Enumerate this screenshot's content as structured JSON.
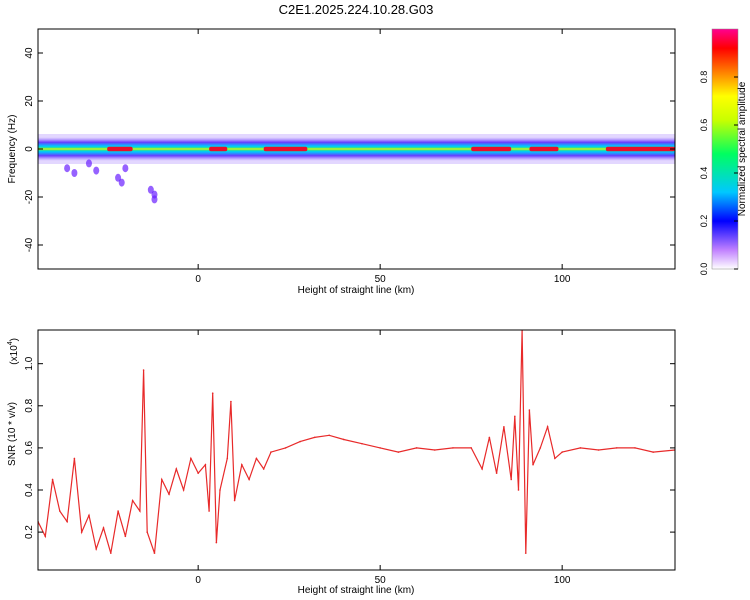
{
  "figure": {
    "title": "C2E1.2025.224.10.28.G03"
  },
  "colors": {
    "line": "#e82a2a",
    "ridge_core": "#e8102a",
    "ridge_mid": "#20e050",
    "ridge_outer": "#2040ff",
    "ridge_halo": "#b08cff"
  },
  "chart_data": [
    {
      "type": "heatmap",
      "title": "",
      "xlabel": "Height of straight line (km)",
      "ylabel": "Frequency (Hz)",
      "xlim": [
        -44,
        131
      ],
      "ylim": [
        -50,
        50
      ],
      "xticks": [
        "0",
        "50",
        "100"
      ],
      "yticks": [
        "-40",
        "-20",
        "0",
        "20",
        "40"
      ],
      "colorbar": {
        "label": "Normalized spectral amplitude",
        "range": [
          0.0,
          1.0
        ],
        "ticks": [
          "0.0",
          "0.2",
          "0.4",
          "0.6",
          "0.8"
        ],
        "colormap": [
          "#ffffff",
          "#a050ff",
          "#0000ff",
          "#00c8ff",
          "#00ff60",
          "#ffff00",
          "#ff8000",
          "#ff0000",
          "#ff0090"
        ]
      },
      "description_band": {
        "center_hz": 0,
        "half_width_hz": 5,
        "scatter_below": [
          {
            "x": -36,
            "y": -8
          },
          {
            "x": -34,
            "y": -10
          },
          {
            "x": -30,
            "y": -6
          },
          {
            "x": -28,
            "y": -9
          },
          {
            "x": -22,
            "y": -12
          },
          {
            "x": -21,
            "y": -14
          },
          {
            "x": -20,
            "y": -8
          },
          {
            "x": -13,
            "y": -17
          },
          {
            "x": -12,
            "y": -19
          },
          {
            "x": -12,
            "y": -21
          }
        ],
        "hot_segments": [
          {
            "x0": -25,
            "x1": -18
          },
          {
            "x0": 3,
            "x1": 8
          },
          {
            "x0": 18,
            "x1": 30
          },
          {
            "x0": 75,
            "x1": 86
          },
          {
            "x0": 91,
            "x1": 99
          },
          {
            "x0": 112,
            "x1": 131
          }
        ]
      }
    },
    {
      "type": "line",
      "title": "",
      "xlabel": "Height of straight line (km)",
      "ylabel": "SNR (10 * v/v)",
      "y_multiplier": "(x10",
      "y_multiplier_exp": "4",
      "y_multiplier_close": ")",
      "xlim": [
        -44,
        131
      ],
      "ylim": [
        0.02,
        1.16
      ],
      "xticks": [
        "0",
        "50",
        "100"
      ],
      "yticks": [
        "0.2",
        "0.4",
        "0.6",
        "0.8",
        "1.0"
      ],
      "x": [
        -44,
        -42,
        -40,
        -38,
        -36,
        -34,
        -32,
        -30,
        -28,
        -26,
        -24,
        -22,
        -20,
        -18,
        -16,
        -15,
        -14,
        -12,
        -10,
        -8,
        -6,
        -4,
        -2,
        0,
        2,
        3,
        4,
        5,
        6,
        8,
        9,
        10,
        12,
        14,
        16,
        18,
        20,
        24,
        28,
        32,
        36,
        40,
        45,
        50,
        55,
        60,
        65,
        70,
        75,
        78,
        80,
        82,
        84,
        86,
        87,
        88,
        89,
        90,
        91,
        92,
        94,
        96,
        98,
        100,
        105,
        110,
        115,
        120,
        125,
        131
      ],
      "values": [
        0.25,
        0.18,
        0.45,
        0.3,
        0.25,
        0.55,
        0.2,
        0.28,
        0.12,
        0.22,
        0.1,
        0.3,
        0.18,
        0.35,
        0.3,
        0.97,
        0.2,
        0.1,
        0.45,
        0.38,
        0.5,
        0.4,
        0.55,
        0.48,
        0.52,
        0.3,
        0.86,
        0.15,
        0.4,
        0.55,
        0.82,
        0.35,
        0.52,
        0.45,
        0.55,
        0.5,
        0.58,
        0.6,
        0.63,
        0.65,
        0.66,
        0.64,
        0.62,
        0.6,
        0.58,
        0.6,
        0.59,
        0.6,
        0.6,
        0.5,
        0.65,
        0.48,
        0.7,
        0.45,
        0.75,
        0.4,
        1.16,
        0.1,
        0.78,
        0.52,
        0.6,
        0.7,
        0.55,
        0.58,
        0.6,
        0.59,
        0.6,
        0.6,
        0.58,
        0.59
      ]
    }
  ]
}
